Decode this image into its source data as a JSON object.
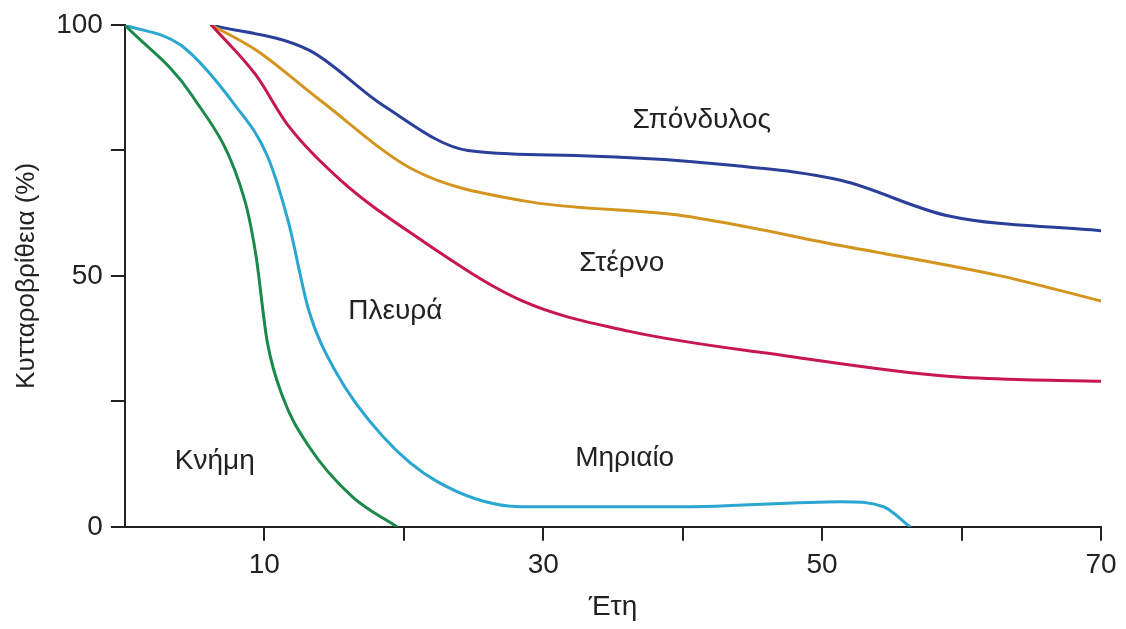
{
  "chart_data": {
    "type": "line",
    "xlabel": "Έτη",
    "ylabel": "Κυτταροβρίθεια (%)",
    "xlim": [
      0,
      70
    ],
    "ylim": [
      0,
      100
    ],
    "xticks": [
      10,
      {
        "value": 20,
        "label": null
      },
      30,
      {
        "value": 40,
        "label": null
      },
      50,
      {
        "value": 60,
        "label": null
      },
      70
    ],
    "yticks": [
      0,
      {
        "value": 25,
        "label": null
      },
      50,
      {
        "value": 75,
        "label": null
      },
      100
    ],
    "grid": false,
    "legend": false,
    "marker": "none",
    "line_style": "solid",
    "series": [
      {
        "name": "Κνήμη",
        "color": "#1a8a4a",
        "x": [
          0,
          4.8,
          8.6,
          9.4,
          10.2,
          11.3,
          13.2,
          16.3,
          19.5
        ],
        "values": [
          100,
          86,
          65,
          54,
          37,
          26,
          16,
          6,
          0
        ]
      },
      {
        "name": "Μηριαίο",
        "color": "#2aa6d0",
        "x": [
          0,
          4,
          7.9,
          10.2,
          11.7,
          13.2,
          15.1,
          18.5,
          22.4,
          28.5,
          40,
          51.4,
          54.4,
          56.3
        ],
        "values": [
          100,
          96,
          84,
          74,
          61,
          43,
          31,
          18,
          9,
          4,
          4,
          5,
          4,
          0
        ]
      },
      {
        "name": "Πλευρά",
        "color": "#c8174f",
        "x": [
          6.2,
          9.4,
          11.7,
          15.5,
          20.8,
          28.5,
          36.1,
          47.6,
          59,
          70
        ],
        "values": [
          100,
          90,
          80,
          69,
          58,
          45,
          39,
          34,
          30,
          29
        ]
      },
      {
        "name": "Στέρνο",
        "color": "#d4951e",
        "x": [
          6.2,
          9.4,
          14,
          20.8,
          28.5,
          40,
          51.4,
          62.8,
          70
        ],
        "values": [
          100,
          95,
          85,
          71,
          65,
          62,
          56,
          50,
          45
        ]
      },
      {
        "name": "Σπόνδυλος",
        "color": "#2a3f9a",
        "x": [
          6.2,
          13.2,
          18.5,
          24.6,
          32.3,
          43.7,
          51.4,
          59,
          70
        ],
        "values": [
          100,
          95,
          84,
          75,
          74,
          72,
          69,
          62,
          59
        ]
      }
    ]
  }
}
